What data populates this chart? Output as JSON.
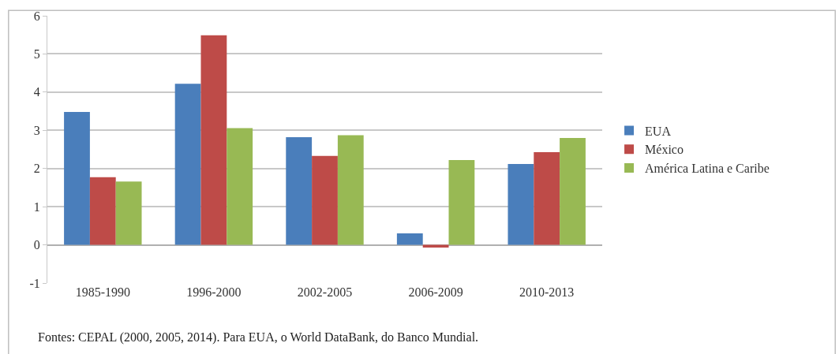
{
  "chart_data": {
    "type": "bar",
    "categories": [
      "1985-1990",
      "1996-2000",
      "2002-2005",
      "2006-2009",
      "2010-2013"
    ],
    "series": [
      {
        "name": "EUA",
        "color": "#4a7ebb",
        "values": [
          3.48,
          4.22,
          2.82,
          0.3,
          2.12
        ]
      },
      {
        "name": "México",
        "color": "#be4b48",
        "values": [
          1.77,
          5.49,
          2.33,
          -0.07,
          2.43
        ]
      },
      {
        "name": "América Latina e Caribe",
        "color": "#98b954",
        "values": [
          1.66,
          3.06,
          2.87,
          2.22,
          2.8
        ]
      }
    ],
    "ylim": [
      -1,
      6
    ],
    "yticks": [
      -1,
      0,
      1,
      2,
      3,
      4,
      5,
      6
    ],
    "grid": "y",
    "legend": "right",
    "annotations": [
      "Fontes: CEPAL (2000, 2005, 2014). Para EUA, o World DataBank, do Banco Mundial."
    ]
  }
}
